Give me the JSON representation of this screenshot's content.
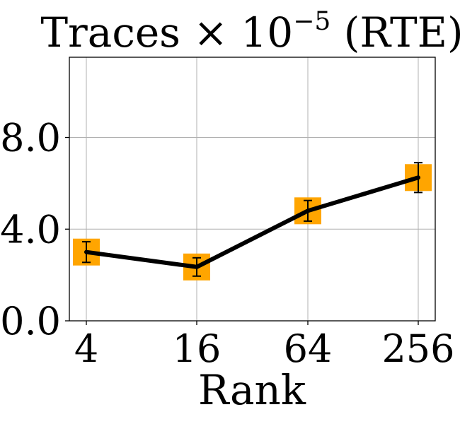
{
  "chart_data": {
    "type": "line",
    "title": {
      "main": "Traces × 10",
      "exponent": "−5",
      "suffix": " (RTE)"
    },
    "xlabel": "Rank",
    "ylabel": "",
    "x_categories": [
      "4",
      "16",
      "64",
      "256"
    ],
    "y_ticks": [
      0.0,
      4.0,
      8.0
    ],
    "y_tick_labels": [
      "0.0",
      "4.0",
      "8.0"
    ],
    "ylim": [
      0,
      11.5
    ],
    "grid": true,
    "series": [
      {
        "values": [
          3.0,
          2.35,
          4.8,
          6.25
        ],
        "error": [
          0.45,
          0.4,
          0.45,
          0.65
        ],
        "line_color": "#000000",
        "marker": "square",
        "marker_color": "#FFA500"
      }
    ]
  }
}
